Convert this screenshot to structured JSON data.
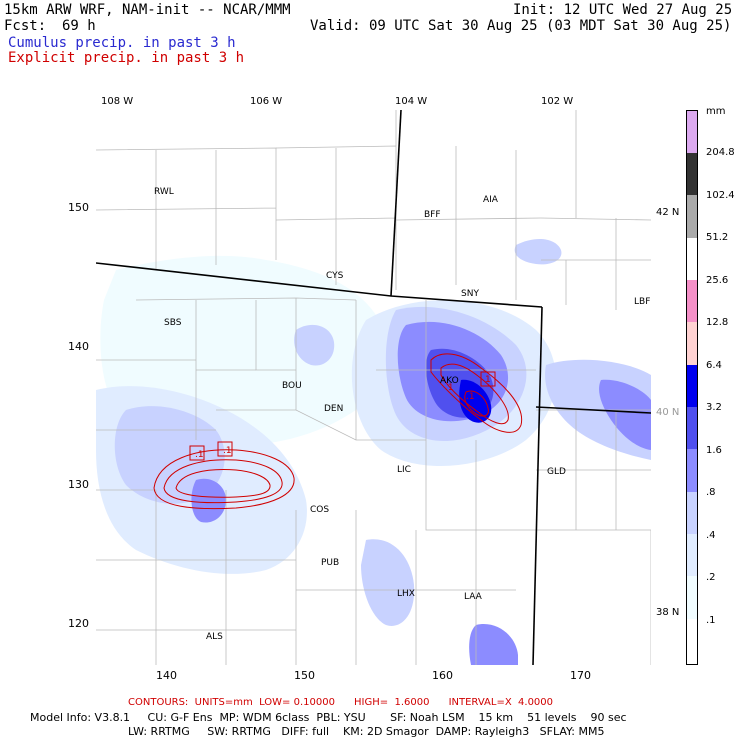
{
  "header": {
    "model": "15km ARW WRF, NAM-init -- NCAR/MMM",
    "init": "Init: 12 UTC Wed 27 Aug 25",
    "fcst_label": "Fcst:",
    "fcst_value": "69 h",
    "valid": "Valid: 09 UTC Sat 30 Aug 25 (03 MDT Sat 30 Aug 25)",
    "field_cumulus": "Cumulus precip. in past 3 h",
    "field_explicit": "Explicit precip. in past 3 h",
    "color_cumulus": "#2a2ad0",
    "color_explicit": "#d00000"
  },
  "map": {
    "lon_ticks": [
      "108 W",
      "106 W",
      "104 W",
      "102 W"
    ],
    "lat_ticks": [
      "42 N",
      "40 N",
      "38 N"
    ],
    "x_ticks": [
      "140",
      "150",
      "160",
      "170"
    ],
    "y_ticks": [
      "150",
      "140",
      "130",
      "120"
    ],
    "stations": [
      "RWL",
      "BFF",
      "AIA",
      "CYS",
      "SNY",
      "SBS",
      "LBF",
      "AKO",
      "BOU",
      "DEN",
      "LIC",
      "GLD",
      "COS",
      "PUB",
      "LHX",
      "LAA",
      "ALS"
    ],
    "contour_labels": [
      ".1",
      ".1",
      ".1",
      ".1",
      "1"
    ]
  },
  "scale": {
    "unit": "mm",
    "levels": [
      "204.8",
      "102.4",
      "51.2",
      "25.6",
      "12.8",
      "6.4",
      "3.2",
      "1.6",
      ".8",
      ".4",
      ".2",
      ".1"
    ],
    "colors": [
      "#dcaaf0",
      "#333333",
      "#aaaaaa",
      "#ffffff",
      "#f590c8",
      "#ffd2d2",
      "#0000ee",
      "#5050ee",
      "#8c8cff",
      "#c8d2ff",
      "#e0ecff",
      "#f0fcff",
      "#ffffff"
    ]
  },
  "footer": {
    "contours": "CONTOURS:  UNITS=mm  LOW= 0.10000      HIGH=  1.6000      INTERVAL=X  4.0000",
    "model_info_1": "Model Info: V3.8.1     CU: G-F Ens  MP: WDM 6class  PBL: YSU       SF: Noah LSM    15 km    51 levels    90 sec",
    "model_info_2": "LW: RRTMG     SW: RRTMG   DIFF: full    KM: 2D Smagor  DAMP: Rayleigh3   SFLAY: MM5"
  }
}
